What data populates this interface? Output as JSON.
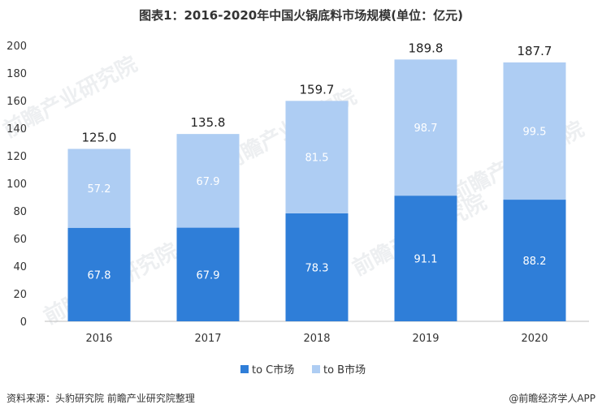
{
  "chart_data": {
    "type": "bar",
    "stacked": true,
    "title": "图表1：2016-2020年中国火锅底料市场规模(单位：亿元)",
    "categories": [
      "2016",
      "2017",
      "2018",
      "2019",
      "2020"
    ],
    "series": [
      {
        "name": "to C市场",
        "values": [
          67.8,
          67.9,
          78.3,
          91.1,
          88.2
        ],
        "color": "#2F7ED8"
      },
      {
        "name": "to B市场",
        "values": [
          57.2,
          67.9,
          81.5,
          98.7,
          99.5
        ],
        "color": "#AECDF3"
      }
    ],
    "totals": [
      "125.0",
      "135.8",
      "159.7",
      "189.8",
      "187.7"
    ],
    "segment_labels": [
      [
        "67.8",
        "67.9",
        "78.3",
        "91.1",
        "88.2"
      ],
      [
        "57.2",
        "67.9",
        "81.5",
        "98.7",
        "99.5"
      ]
    ],
    "ylim": [
      0,
      200
    ],
    "yticks": [
      0,
      20,
      40,
      60,
      80,
      100,
      120,
      140,
      160,
      180,
      200
    ],
    "legend_position": "bottom-center",
    "grid": false
  },
  "footer": {
    "source": "资料来源：头豹研究院 前瞻产业研究院整理",
    "brand": "@前瞻经济学人APP"
  },
  "watermark": "前瞻产业研究院"
}
